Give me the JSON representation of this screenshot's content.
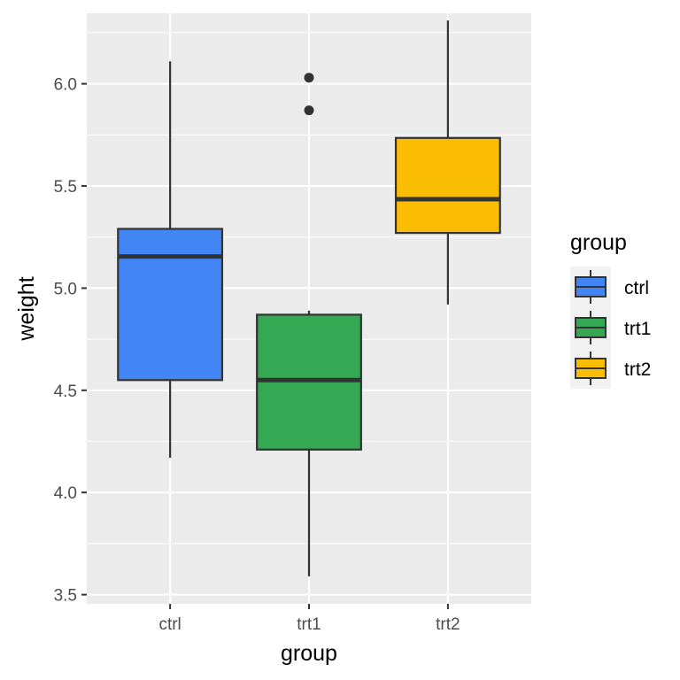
{
  "chart_data": {
    "type": "boxplot",
    "xlabel": "group",
    "ylabel": "weight",
    "ylim": [
      3.455,
      6.345
    ],
    "y_ticks": [
      3.5,
      4.0,
      4.5,
      5.0,
      5.5,
      6.0
    ],
    "y_tick_labels": [
      "3.5",
      "4.0",
      "4.5",
      "5.0",
      "5.5",
      "6.0"
    ],
    "categories": [
      "ctrl",
      "trt1",
      "trt2"
    ],
    "series": [
      {
        "name": "ctrl",
        "color": "#4285F4",
        "lower_whisker": 4.17,
        "q1": 4.55,
        "median": 5.155,
        "q3": 5.29,
        "upper_whisker": 6.11,
        "outliers": []
      },
      {
        "name": "trt1",
        "color": "#34A853",
        "lower_whisker": 3.59,
        "q1": 4.21,
        "median": 4.55,
        "q3": 4.87,
        "upper_whisker": 4.89,
        "outliers": [
          5.87,
          6.03
        ]
      },
      {
        "name": "trt2",
        "color": "#FBBC04",
        "lower_whisker": 4.92,
        "q1": 5.27,
        "median": 5.435,
        "q3": 5.735,
        "upper_whisker": 6.31,
        "outliers": []
      }
    ],
    "legend": {
      "title": "group",
      "position": "right",
      "entries": [
        "ctrl",
        "trt1",
        "trt2"
      ]
    },
    "grid": true
  }
}
